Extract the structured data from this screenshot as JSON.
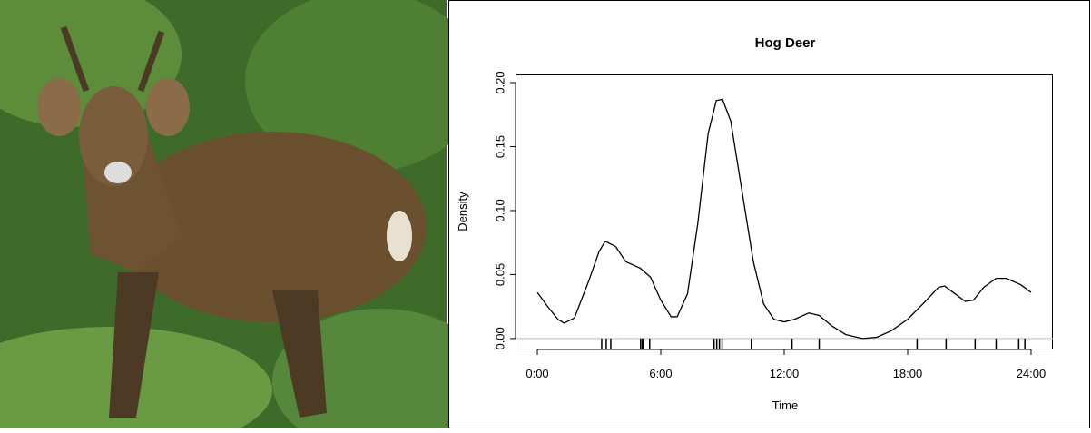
{
  "chart_data": {
    "type": "line",
    "title": "Hog Deer",
    "x_label": "Time",
    "y_label": "Density",
    "x": [
      0,
      0.5,
      1,
      1.3,
      1.8,
      2.5,
      3,
      3.3,
      3.8,
      4.3,
      5,
      5.5,
      6,
      6.5,
      6.8,
      7.3,
      7.8,
      8.3,
      8.7,
      9,
      9.4,
      10,
      10.5,
      11,
      11.5,
      12,
      12.5,
      13.2,
      13.7,
      14.3,
      15,
      15.8,
      16.5,
      17.2,
      18,
      18.8,
      19.5,
      19.8,
      20.3,
      20.8,
      21.2,
      21.7,
      22.3,
      22.8,
      23.5,
      24
    ],
    "values": [
      0.036,
      0.025,
      0.015,
      0.012,
      0.016,
      0.045,
      0.068,
      0.076,
      0.072,
      0.06,
      0.055,
      0.048,
      0.03,
      0.017,
      0.017,
      0.035,
      0.09,
      0.16,
      0.186,
      0.187,
      0.17,
      0.11,
      0.06,
      0.027,
      0.015,
      0.013,
      0.015,
      0.02,
      0.018,
      0.01,
      0.003,
      0.0,
      0.001,
      0.006,
      0.015,
      0.028,
      0.04,
      0.041,
      0.035,
      0.029,
      0.03,
      0.04,
      0.047,
      0.047,
      0.042,
      0.036
    ],
    "rug": [
      3.13,
      3.35,
      3.57,
      5.02,
      5.1,
      5.15,
      5.46,
      8.59,
      8.72,
      8.85,
      8.98,
      10.4,
      12.38,
      13.7,
      18.46,
      19.87,
      21.28,
      22.3,
      23.4,
      23.7
    ],
    "color": "#000000",
    "xlim": [
      -1.06,
      25.06
    ],
    "ylim": [
      -0.0086,
      0.2064
    ],
    "xticks": [
      {
        "value": 0,
        "label": "0:00"
      },
      {
        "value": 6,
        "label": "6:00"
      },
      {
        "value": 12,
        "label": "12:00"
      },
      {
        "value": 18,
        "label": "18:00"
      },
      {
        "value": 24,
        "label": "24:00"
      }
    ],
    "yticks": [
      {
        "value": 0,
        "label": "0.00"
      },
      {
        "value": 0.05,
        "label": "0.05"
      },
      {
        "value": 0.1,
        "label": "0.10"
      },
      {
        "value": 0.15,
        "label": "0.15"
      },
      {
        "value": 0.2,
        "label": "0.20"
      }
    ]
  }
}
